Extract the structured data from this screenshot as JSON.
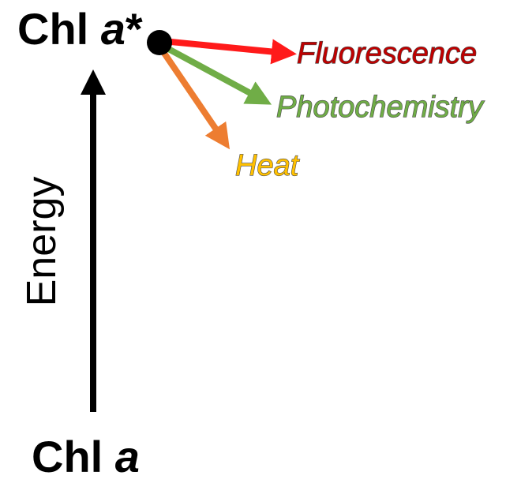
{
  "states": {
    "excited_prefix": "Chl ",
    "excited_italic": "a",
    "excited_suffix": "*",
    "ground_prefix": "Chl ",
    "ground_italic": "a"
  },
  "axis": {
    "label": "Energy"
  },
  "pathways": [
    {
      "key": "fluorescence",
      "label": "Fluorescence",
      "color": "#ff1a1a",
      "text_color": "#c00000"
    },
    {
      "key": "photochemistry",
      "label": "Photochemistry",
      "color": "#70ad47",
      "text_color": "#70ad47"
    },
    {
      "key": "heat",
      "label": "Heat",
      "color": "#ed7d31",
      "text_color": "#ffc000"
    }
  ],
  "colors": {
    "axis": "#000000",
    "dot": "#000000"
  }
}
